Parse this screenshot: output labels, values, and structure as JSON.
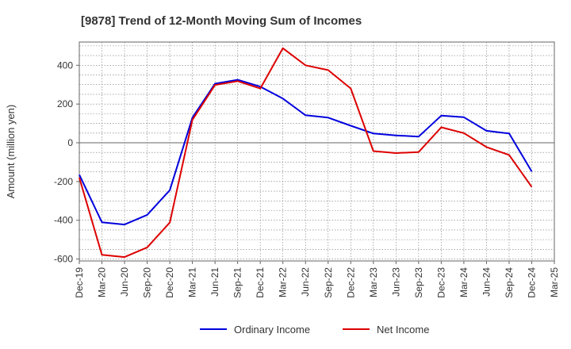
{
  "chart_data": {
    "type": "line",
    "title": "[9878]  Trend of 12-Month Moving Sum of Incomes",
    "xlabel": "",
    "ylabel": "Amount (million yen)",
    "categories": [
      "Dec-19",
      "Mar-20",
      "Jun-20",
      "Sep-20",
      "Dec-20",
      "Mar-21",
      "Jun-21",
      "Sep-21",
      "Dec-21",
      "Mar-22",
      "Jun-22",
      "Sep-22",
      "Dec-22",
      "Mar-23",
      "Jun-23",
      "Sep-23",
      "Dec-23",
      "Mar-24",
      "Jun-24",
      "Sep-24",
      "Dec-24",
      "Mar-25"
    ],
    "ylim": [
      -610,
      520
    ],
    "yticks": [
      -600,
      -400,
      -200,
      0,
      200,
      400
    ],
    "grid": true,
    "legend_position": "bottom",
    "series": [
      {
        "name": "Ordinary Income",
        "color": "#0000dd",
        "values": [
          -165,
          -410,
          -422,
          -372,
          -245,
          130,
          305,
          325,
          290,
          228,
          142,
          130,
          88,
          48,
          38,
          32,
          140,
          132,
          62,
          48,
          -148,
          null
        ]
      },
      {
        "name": "Net Income",
        "color": "#dd0000",
        "values": [
          -180,
          -578,
          -590,
          -540,
          -412,
          118,
          298,
          318,
          280,
          488,
          400,
          375,
          280,
          -43,
          -53,
          -48,
          80,
          50,
          -22,
          -63,
          -228,
          null
        ]
      }
    ]
  }
}
